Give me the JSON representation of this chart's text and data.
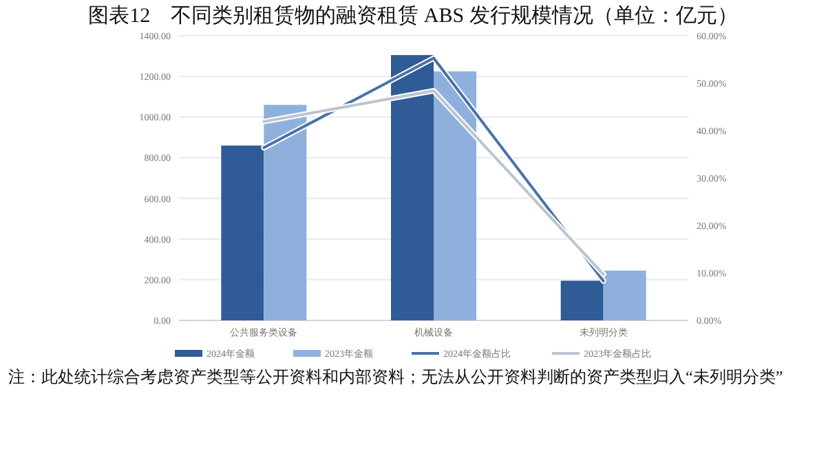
{
  "chart_data": {
    "type": "bar",
    "title": "图表12　不同类别租赁物的融资租赁 ABS 发行规模情况（单位：亿元）",
    "categories": [
      "公共服务类设备",
      "机械设备",
      "未列明分类"
    ],
    "series": [
      {
        "name": "2024年金额",
        "color": "#2f5b96",
        "values": [
          860,
          1305,
          195
        ]
      },
      {
        "name": "2023年金额",
        "color": "#8fb0dc",
        "values": [
          1060,
          1225,
          245
        ]
      },
      {
        "name": "2024年金额占比",
        "type": "line",
        "axis": "y2",
        "color": "#4a72a8",
        "values": [
          36.4,
          55.3,
          8.3
        ]
      },
      {
        "name": "2023年金额占比",
        "type": "line",
        "axis": "y2",
        "color": "#bcc4d0",
        "values": [
          41.9,
          48.4,
          9.7
        ]
      }
    ],
    "ylim": [
      0,
      1400
    ],
    "yticks": [
      {
        "value": 0,
        "label": "0.00"
      },
      {
        "value": 200,
        "label": "200.00"
      },
      {
        "value": 400,
        "label": "400.00"
      },
      {
        "value": 600,
        "label": "600.00"
      },
      {
        "value": 800,
        "label": "800.00"
      },
      {
        "value": 1000,
        "label": "1000.00"
      },
      {
        "value": 1200,
        "label": "1200.00"
      },
      {
        "value": 1400,
        "label": "1400.00"
      }
    ],
    "y2lim": [
      0,
      60
    ],
    "y2ticks": [
      {
        "value": 0,
        "label": "0.00%"
      },
      {
        "value": 10,
        "label": "10.00%"
      },
      {
        "value": 20,
        "label": "20.00%"
      },
      {
        "value": 30,
        "label": "30.00%"
      },
      {
        "value": 40,
        "label": "40.00%"
      },
      {
        "value": 50,
        "label": "50.00%"
      },
      {
        "value": 60,
        "label": "60.00%"
      }
    ],
    "grid": "y",
    "legend": "bottom",
    "annotations": [
      "注：此处统计综合考虑资产类型等公开资料和内部资料；无法从公开资料判断的资产类型归入“未列明分类”"
    ]
  }
}
